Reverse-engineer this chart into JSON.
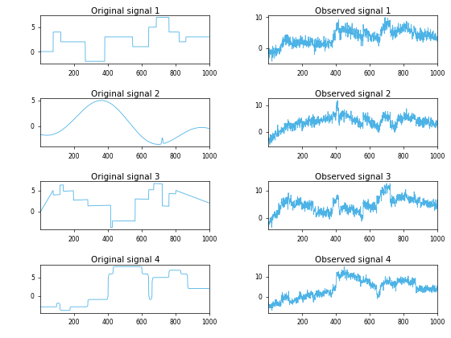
{
  "n_points": 1000,
  "figsize": [
    5.6,
    4.2
  ],
  "dpi": 100,
  "line_color": "#4db3e6",
  "line_width": 0.6,
  "titles": [
    "Original signal 1",
    "Observed signal 1",
    "Original signal 2",
    "Observed signal 2",
    "Original signal 3",
    "Observed signal 3",
    "Original signal 4",
    "Observed signal 4"
  ],
  "title_fontsize": 7.5,
  "tick_fontsize": 5.5,
  "seed": 0
}
